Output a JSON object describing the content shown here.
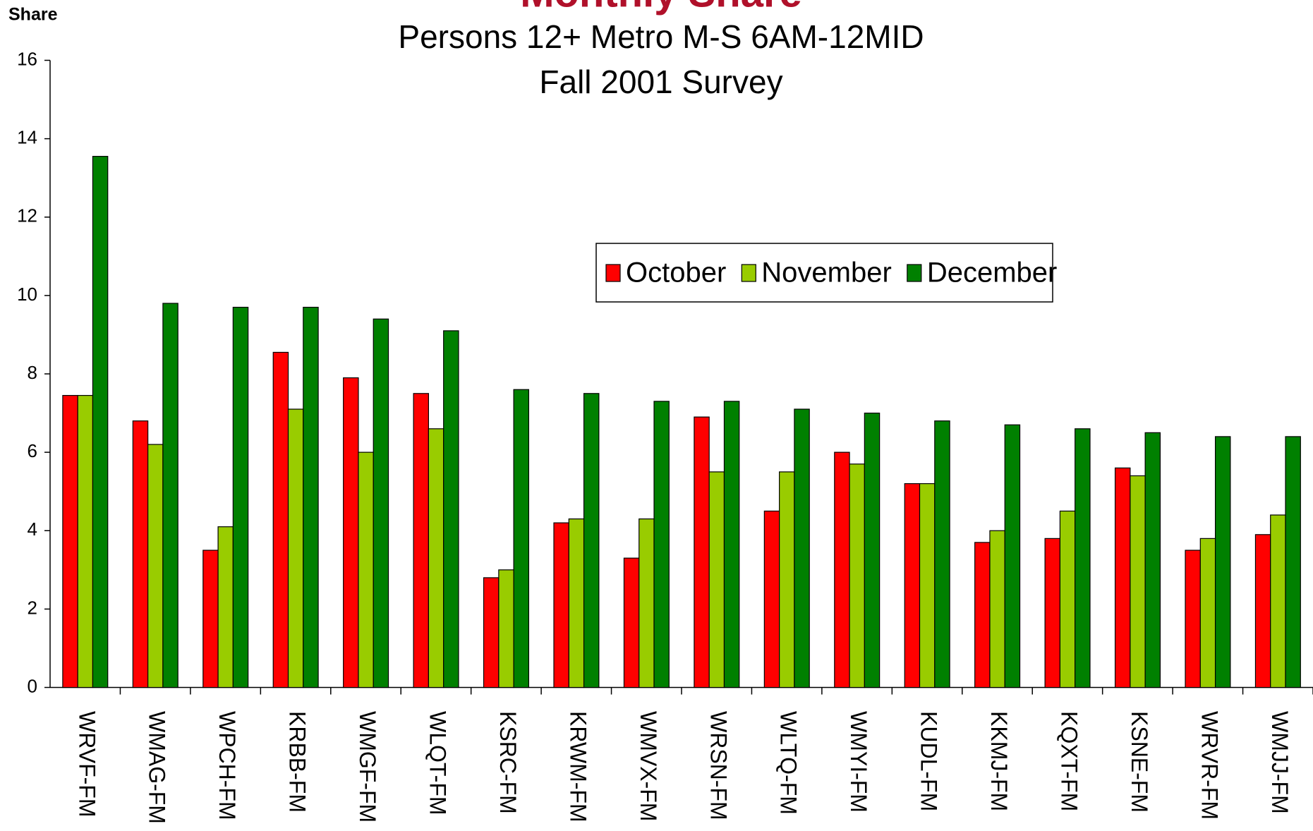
{
  "chart_data": {
    "type": "bar",
    "title": "Monthly Share",
    "subtitle": [
      "Persons 12+ Metro M-S 6AM-12MID",
      "Fall 2001 Survey"
    ],
    "y_label": "Share",
    "categories": [
      "WRVF-FM",
      "WMAG-FM",
      "WPCH-FM",
      "KRBB-FM",
      "WMGF-FM",
      "WLQT-FM",
      "KSRC-FM",
      "KRWM-FM",
      "WMVX-FM",
      "WRSN-FM",
      "WLTQ-FM",
      "WMYI-FM",
      "KUDL-FM",
      "KKMJ-FM",
      "KQXT-FM",
      "KSNE-FM",
      "WRVR-FM",
      "WMJJ-FM"
    ],
    "series": [
      {
        "name": "October",
        "color": "#ff0000",
        "values": [
          7.45,
          6.8,
          3.5,
          8.55,
          7.9,
          7.5,
          2.8,
          4.2,
          3.3,
          6.9,
          4.5,
          6.0,
          5.2,
          3.7,
          3.8,
          5.6,
          3.5,
          3.9
        ]
      },
      {
        "name": "November",
        "color": "#99cc00",
        "values": [
          7.45,
          6.2,
          4.1,
          7.1,
          6.0,
          6.6,
          3.0,
          4.3,
          4.3,
          5.5,
          5.5,
          5.7,
          5.2,
          4.0,
          4.5,
          5.4,
          3.8,
          4.4
        ]
      },
      {
        "name": "December",
        "color": "#008000",
        "values": [
          13.55,
          9.8,
          9.7,
          9.7,
          9.4,
          9.1,
          7.6,
          7.5,
          7.3,
          7.3,
          7.1,
          7.0,
          6.8,
          6.7,
          6.6,
          6.5,
          6.4,
          6.4
        ]
      }
    ],
    "ylim": [
      0,
      16
    ],
    "yticks": [
      0,
      2,
      4,
      6,
      8,
      10,
      12,
      14,
      16
    ],
    "grid": false,
    "title_color": "#b0102a"
  }
}
